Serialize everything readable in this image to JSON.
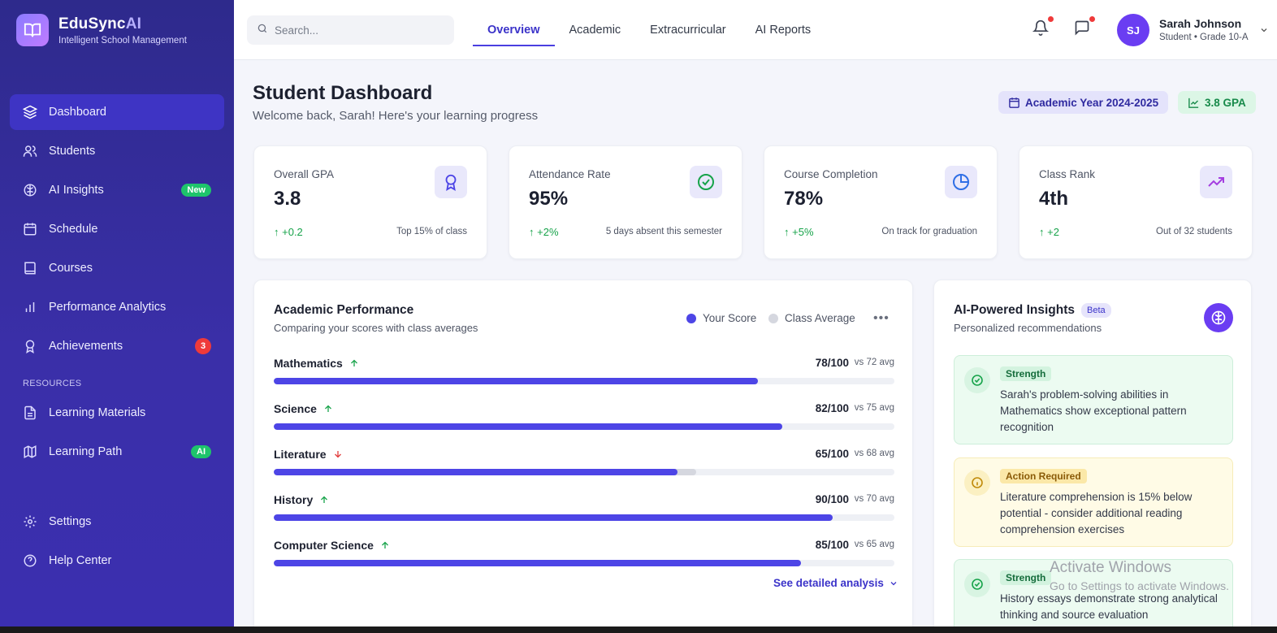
{
  "brand": {
    "name": "EduSync",
    "name_accent": "AI",
    "tagline": "Intelligent School Management"
  },
  "sidebar": {
    "items": [
      {
        "label": "Dashboard",
        "icon": "layers-icon",
        "active": true
      },
      {
        "label": "Students",
        "icon": "users-icon"
      },
      {
        "label": "AI Insights",
        "icon": "brain-icon",
        "badge": "New"
      },
      {
        "label": "Schedule",
        "icon": "calendar-icon"
      },
      {
        "label": "Courses",
        "icon": "book-icon"
      },
      {
        "label": "Performance Analytics",
        "icon": "bar-chart-icon"
      },
      {
        "label": "Achievements",
        "icon": "award-icon",
        "badge": "3"
      }
    ],
    "section_label": "RESOURCES",
    "resources": [
      {
        "label": "Learning Materials",
        "icon": "file-icon"
      },
      {
        "label": "Learning Path",
        "icon": "map-icon",
        "badge": "AI"
      }
    ],
    "bottom": [
      {
        "label": "Settings",
        "icon": "gear-icon"
      },
      {
        "label": "Help Center",
        "icon": "help-icon"
      }
    ]
  },
  "header": {
    "search_placeholder": "Search...",
    "tabs": [
      "Overview",
      "Academic",
      "Extracurricular",
      "AI Reports"
    ],
    "active_tab": "Overview",
    "user": {
      "initials": "SJ",
      "name": "Sarah Johnson",
      "role": "Student • Grade 10-A"
    }
  },
  "page": {
    "title": "Student Dashboard",
    "subtitle": "Welcome back, Sarah! Here's your learning progress",
    "academic_year": "Academic Year 2024-2025",
    "gpa_pill": "3.8 GPA"
  },
  "stats": [
    {
      "label": "Overall GPA",
      "value": "3.8",
      "change": "+0.2",
      "note": "Top 15% of class",
      "icon": "award-icon"
    },
    {
      "label": "Attendance Rate",
      "value": "95%",
      "change": "+2%",
      "note": "5 days absent this semester",
      "icon": "check-circle-icon"
    },
    {
      "label": "Course Completion",
      "value": "78%",
      "change": "+5%",
      "note": "On track for graduation",
      "icon": "pie-chart-icon"
    },
    {
      "label": "Class Rank",
      "value": "4th",
      "change": "+2",
      "note": "Out of 32 students",
      "icon": "trending-up-icon"
    }
  ],
  "performance": {
    "title": "Academic Performance",
    "subtitle": "Comparing your scores with class averages",
    "legend": [
      "Your Score",
      "Class Average"
    ],
    "subjects": [
      {
        "name": "Mathematics",
        "score": "78/100",
        "avg": "vs 72 avg",
        "score_value": 78,
        "avg_value": 72,
        "trend": "up"
      },
      {
        "name": "Science",
        "score": "82/100",
        "avg": "vs 75 avg",
        "score_value": 82,
        "avg_value": 75,
        "trend": "up"
      },
      {
        "name": "Literature",
        "score": "65/100",
        "avg": "vs 68 avg",
        "score_value": 65,
        "avg_value": 68,
        "trend": "down"
      },
      {
        "name": "History",
        "score": "90/100",
        "avg": "vs 70 avg",
        "score_value": 90,
        "avg_value": 70,
        "trend": "up"
      },
      {
        "name": "Computer Science",
        "score": "85/100",
        "avg": "vs 65 avg",
        "score_value": 85,
        "avg_value": 65,
        "trend": "up"
      }
    ],
    "detail_link": "See detailed analysis"
  },
  "insights": {
    "title": "AI-Powered Insights",
    "badge": "Beta",
    "subtitle": "Personalized recommendations",
    "cards": [
      {
        "type": "good",
        "tag": "Strength",
        "text": "Sarah's problem-solving abilities in Mathematics show exceptional pattern recognition"
      },
      {
        "type": "warn",
        "tag": "Action Required",
        "text": "Literature comprehension is 15% below potential - consider additional reading comprehension exercises"
      },
      {
        "type": "good",
        "tag": "Strength",
        "text": "History essays demonstrate strong analytical thinking and source evaluation"
      }
    ]
  },
  "watermark": {
    "line1": "Activate Windows",
    "line2": "Go to Settings to activate Windows."
  },
  "colors": {
    "primary": "#4d45e6",
    "sidebar": "#2e2a8c",
    "success": "#17a34a",
    "danger": "#ef3a3a"
  }
}
